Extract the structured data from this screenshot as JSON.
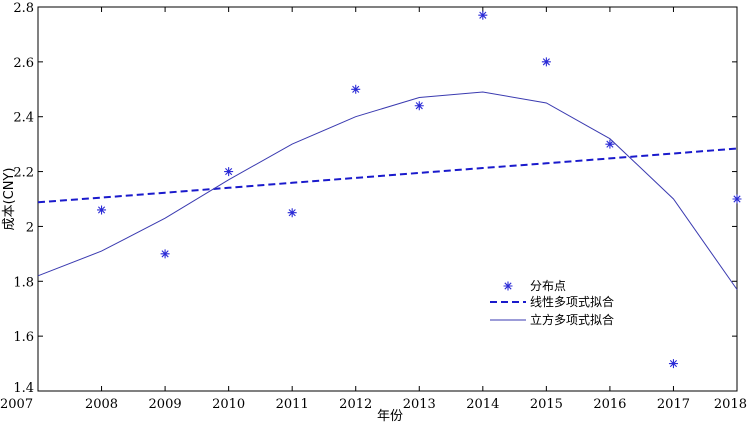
{
  "chart_data": {
    "type": "line",
    "xlabel": "年份",
    "ylabel": "成本(CNY)",
    "xlim": [
      2007,
      2018
    ],
    "ylim": [
      1.4,
      2.8
    ],
    "xticks": [
      "2007",
      "2008",
      "2009",
      "2010",
      "2011",
      "2012",
      "2013",
      "2014",
      "2015",
      "2016",
      "2017",
      "2018"
    ],
    "yticks": [
      "1.4",
      "1.6",
      "1.8",
      "2",
      "2.2",
      "2.4",
      "2.6",
      "2.8"
    ],
    "grid": false,
    "legend_position": "right-middle",
    "series": [
      {
        "name": "分布点",
        "kind": "scatter",
        "marker": "star",
        "color": "#2b2bd6",
        "x": [
          2008,
          2009,
          2010,
          2011,
          2012,
          2013,
          2014,
          2015,
          2016,
          2017,
          2018
        ],
        "y": [
          2.06,
          1.9,
          2.2,
          2.05,
          2.5,
          2.44,
          2.77,
          2.6,
          2.3,
          1.5,
          2.1
        ]
      },
      {
        "name": "线性多项式拟合",
        "kind": "line",
        "style": "dashed",
        "color": "#1a1acc",
        "x": [
          2007,
          2008,
          2009,
          2010,
          2011,
          2012,
          2013,
          2014,
          2015,
          2016,
          2017,
          2018
        ],
        "y": [
          2.088,
          2.105,
          2.123,
          2.141,
          2.159,
          2.177,
          2.195,
          2.213,
          2.23,
          2.248,
          2.266,
          2.284
        ]
      },
      {
        "name": "立方多项式拟合",
        "kind": "line",
        "style": "solid",
        "color": "#3a3ab0",
        "x": [
          2007,
          2008,
          2009,
          2010,
          2011,
          2012,
          2013,
          2014,
          2015,
          2016,
          2017,
          2018
        ],
        "y": [
          1.82,
          1.91,
          2.03,
          2.17,
          2.3,
          2.4,
          2.47,
          2.49,
          2.45,
          2.32,
          2.1,
          1.77
        ]
      }
    ]
  }
}
